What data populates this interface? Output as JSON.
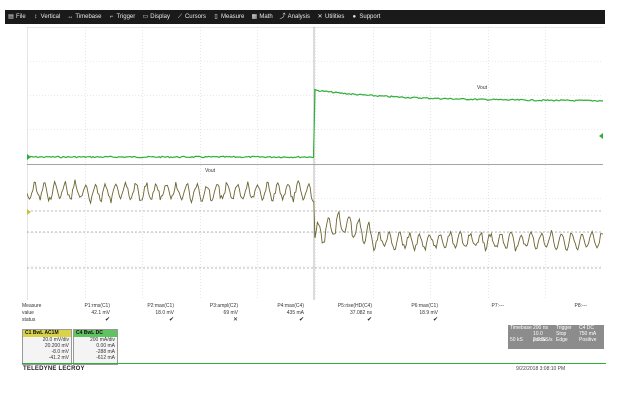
{
  "menu": [
    {
      "label": "File",
      "icon": "file-icon",
      "glyph": "▤"
    },
    {
      "label": "Vertical",
      "icon": "vertical-icon",
      "glyph": "↕"
    },
    {
      "label": "Timebase",
      "icon": "timebase-icon",
      "glyph": "↔"
    },
    {
      "label": "Trigger",
      "icon": "trigger-icon",
      "glyph": "⌐"
    },
    {
      "label": "Display",
      "icon": "display-icon",
      "glyph": "▭"
    },
    {
      "label": "Cursors",
      "icon": "cursors-icon",
      "glyph": "⟋"
    },
    {
      "label": "Measure",
      "icon": "measure-icon",
      "glyph": "▯"
    },
    {
      "label": "Math",
      "icon": "math-icon",
      "glyph": "▦"
    },
    {
      "label": "Analysis",
      "icon": "analysis-icon",
      "glyph": "⤴"
    },
    {
      "label": "Utilities",
      "icon": "utilities-icon",
      "glyph": "✕"
    },
    {
      "label": "Support",
      "icon": "support-icon",
      "glyph": "●"
    }
  ],
  "traces": {
    "upper_label": "Vout",
    "lower_label": "Vout",
    "upper_color": "#2fae3a",
    "lower_color": "#6b6430"
  },
  "measure": {
    "labels": [
      "Measure",
      "value",
      "status"
    ],
    "columns": [
      {
        "name": "P1:rms(C1)",
        "value": "42.1 mV",
        "status": "✔"
      },
      {
        "name": "P2:max(C1)",
        "value": "18.0 mV",
        "status": "✔"
      },
      {
        "name": "P3:ampl(C2)",
        "value": "69 mV",
        "status": "✕"
      },
      {
        "name": "P4:max(C4)",
        "value": "435 mA",
        "status": "✔"
      },
      {
        "name": "P5:rise(HD(C4)",
        "value": "37.082 ns",
        "status": "✔"
      },
      {
        "name": "P6:max(C1)",
        "value": "18.9 mV",
        "status": "✔"
      },
      {
        "name": "P7:---",
        "value": "",
        "status": ""
      },
      {
        "name": "P8:---",
        "value": "",
        "status": ""
      }
    ]
  },
  "channels": {
    "c1": {
      "head": "C1  BwL AC1M",
      "rows": [
        "20.0 mV/div",
        "20.200 mV",
        "-8.0 mV",
        "-41.2 mV"
      ]
    },
    "c4": {
      "head": "C4  BwL DC",
      "rows": [
        "200 mA/div",
        "0.00 mA",
        "-288 mA",
        "-612 mA"
      ]
    }
  },
  "timebase": {
    "rows": [
      [
        "Timebase",
        "200 ns",
        "Trigger",
        "C4 DC"
      ],
      [
        "",
        "10.0 ps/div",
        "Stop",
        "750 mA"
      ],
      [
        "50 kS",
        "2.5 GS/s",
        "Edge",
        "Positive"
      ]
    ]
  },
  "brand": "TELEDYNE LECROY",
  "timestamp": "9/22/2018 3:08:10 PM"
}
